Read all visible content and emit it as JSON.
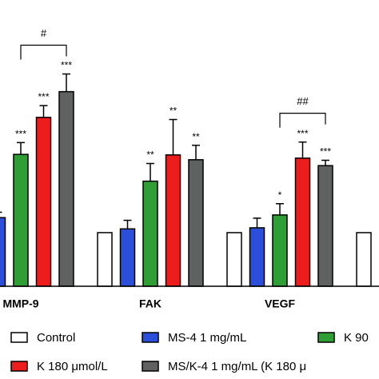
{
  "chart_data": {
    "type": "bar",
    "categories": [
      "MMP-9",
      "FAK",
      "VEGF",
      null
    ],
    "ylim": [
      0,
      5.34
    ],
    "series": [
      {
        "name": "Control",
        "color": "#ffffff",
        "values": [
          null,
          1.0,
          1.0,
          1.0
        ]
      },
      {
        "name": "MS-4 1 mg/mL",
        "color": "#2b4fd8",
        "values": [
          1.28,
          1.07,
          1.09,
          null
        ],
        "errors": [
          0.1,
          0.16,
          0.18,
          null
        ]
      },
      {
        "name": "K 90",
        "color": "#2f9e34",
        "values": [
          2.46,
          1.96,
          1.33,
          null
        ],
        "errors": [
          0.22,
          0.33,
          0.21,
          null
        ]
      },
      {
        "name": "K 180 μmol/L",
        "color": "#ee1d1d",
        "values": [
          3.15,
          2.45,
          2.39,
          null
        ],
        "errors": [
          0.22,
          0.66,
          0.3,
          null
        ]
      },
      {
        "name": "MS/K-4 1 mg/mL (K 180 μ",
        "color": "#606261",
        "values": [
          3.63,
          2.36,
          2.25,
          null
        ],
        "errors": [
          0.33,
          0.27,
          0.1,
          null
        ]
      }
    ],
    "annotations": [
      {
        "text": "***",
        "series": 2,
        "category": 0
      },
      {
        "text": "***",
        "series": 3,
        "category": 0
      },
      {
        "text": "***",
        "series": 4,
        "category": 0
      },
      {
        "text": "**",
        "series": 2,
        "category": 1
      },
      {
        "text": "**",
        "series": 3,
        "category": 1
      },
      {
        "text": "**",
        "series": 4,
        "category": 1
      },
      {
        "text": "*",
        "series": 2,
        "category": 2
      },
      {
        "text": "***",
        "series": 3,
        "category": 2
      },
      {
        "text": "***",
        "series": 4,
        "category": 2
      }
    ],
    "brackets": [
      {
        "label": "#",
        "category": 0,
        "from": 2,
        "to": 4
      },
      {
        "label": "##",
        "category": 2,
        "from": 2,
        "to": 4
      }
    ]
  }
}
